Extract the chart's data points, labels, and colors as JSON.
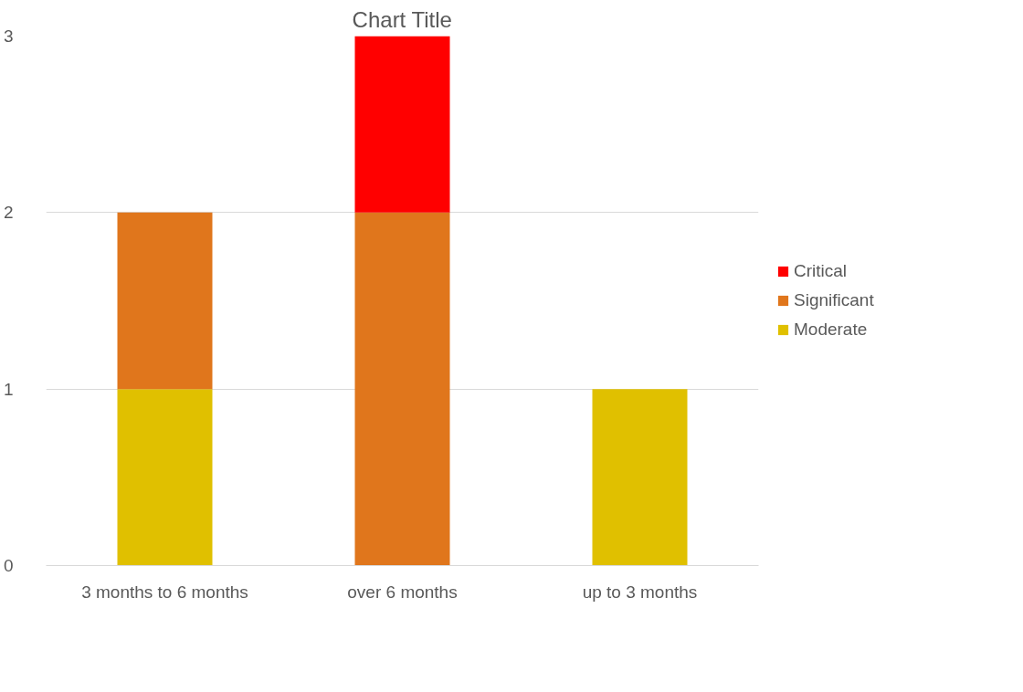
{
  "chart_data": {
    "type": "bar",
    "title": "Chart Title",
    "categories": [
      "3 months to 6 months",
      "over 6 months",
      "up to 3 months"
    ],
    "stacked": true,
    "series": [
      {
        "name": "Moderate",
        "color": "#e0c000",
        "values": [
          1,
          0,
          1
        ]
      },
      {
        "name": "Significant",
        "color": "#e0761c",
        "values": [
          1,
          2,
          0
        ]
      },
      {
        "name": "Critical",
        "color": "#ff0000",
        "values": [
          0,
          1,
          0
        ]
      }
    ],
    "ylim": [
      0,
      3
    ],
    "yticks": [
      0,
      1,
      2,
      3
    ],
    "grid": "y",
    "legend": "right"
  }
}
